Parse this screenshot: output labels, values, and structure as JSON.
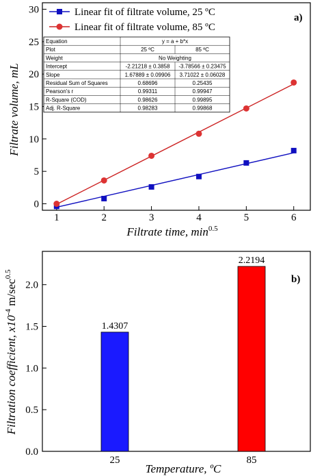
{
  "chart_data": [
    {
      "panel": "a)",
      "type": "scatter",
      "xlabel": "Filtrate time, min",
      "xlabel_sup": "0.5",
      "ylabel": "Filtrate volume, mL",
      "xlim": [
        0.7,
        6.35
      ],
      "ylim": [
        -1,
        31
      ],
      "xticks": [
        1,
        2,
        3,
        4,
        5,
        6
      ],
      "yticks": [
        0,
        5,
        10,
        15,
        20,
        25,
        30
      ],
      "series": [
        {
          "name": "Linear fit of filtrate volume, 25 ºC",
          "color": "#1010c0",
          "marker": "square",
          "x": [
            1,
            2,
            3,
            4,
            5,
            6
          ],
          "y": [
            -0.4,
            0.8,
            2.6,
            4.2,
            6.3,
            8.2
          ],
          "fit": {
            "intercept": -2.21218,
            "slope": 1.67889
          }
        },
        {
          "name": "Linear fit of filtrate volume, 85 ºC",
          "color": "#cc2222",
          "marker": "circle",
          "x": [
            1,
            2,
            3,
            4,
            5,
            6
          ],
          "y": [
            0.0,
            3.6,
            7.4,
            10.8,
            14.7,
            18.7
          ],
          "fit": {
            "intercept": -3.78566,
            "slope": 3.71022
          }
        }
      ],
      "stats_table": [
        [
          "Equation",
          "y = a + b*x",
          ""
        ],
        [
          "Plot",
          "25 ºC",
          "85 ºC"
        ],
        [
          "Weight",
          "No Weighting",
          ""
        ],
        [
          "Intercept",
          "-2.21218 ± 0.3858",
          "-3.78566 ± 0.23475"
        ],
        [
          "Slope",
          "1.67889 ± 0.09906",
          "3.71022 ± 0.06028"
        ],
        [
          "Residual Sum of Squares",
          "0.68696",
          "0.25435"
        ],
        [
          "Pearson's r",
          "0.99311",
          "0.99947"
        ],
        [
          "R-Square (COD)",
          "0.98626",
          "0.99895"
        ],
        [
          "Adj. R-Square",
          "0.98283",
          "0.99868"
        ]
      ]
    },
    {
      "panel": "b)",
      "type": "bar",
      "xlabel": "Temperature, ºC",
      "ylabel": "Filtration coefficient, x10",
      "ylabel_sup1": "-4",
      "ylabel_mid": " m/sec",
      "ylabel_sup2": "0.5",
      "categories": [
        "25",
        "85"
      ],
      "values": [
        1.4307,
        2.2194
      ],
      "value_labels": [
        "1.4307",
        "2.2194"
      ],
      "colors": [
        "#1a1aff",
        "#ff0000"
      ],
      "ylim": [
        0,
        2.4
      ],
      "yticks": [
        "0.0",
        "0.5",
        "1.0",
        "1.5",
        "2.0"
      ]
    }
  ]
}
